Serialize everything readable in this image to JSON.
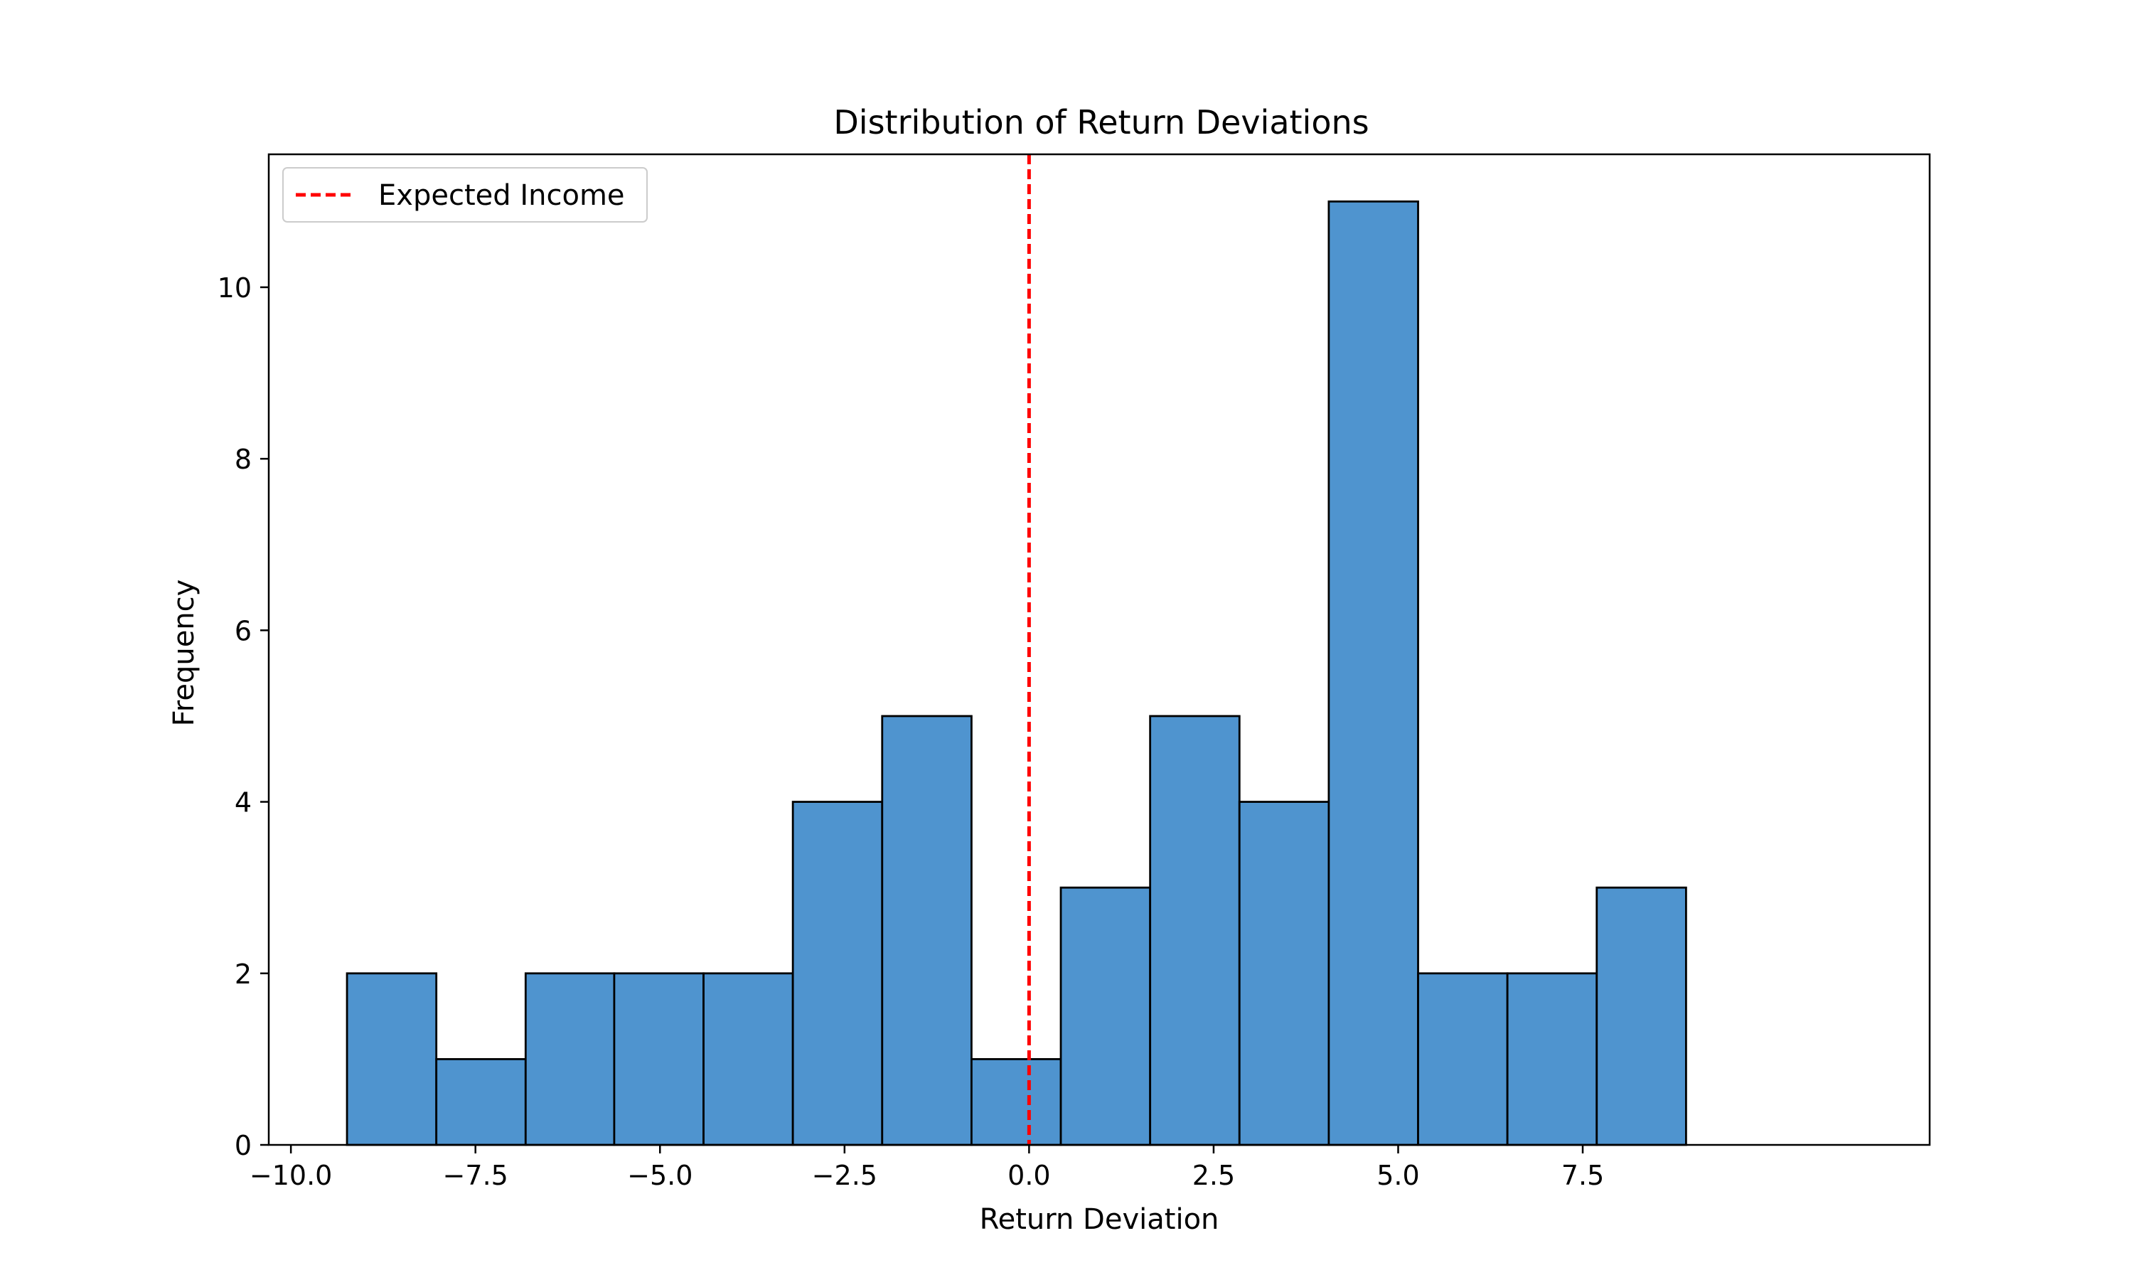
{
  "chart_data": {
    "type": "bar",
    "title": "Distribution of Return Deviations",
    "xlabel": "Return Deviation",
    "ylabel": "Frequency",
    "xlim": [
      -10.3,
      12.2
    ],
    "ylim": [
      0,
      11.55
    ],
    "xticks": [
      -10.0,
      -7.5,
      -5.0,
      -2.5,
      0.0,
      2.5,
      5.0,
      7.5
    ],
    "xtick_labels": [
      "−10.0",
      "−7.5",
      "−5.0",
      "−2.5",
      "0.0",
      "2.5",
      "5.0",
      "7.5"
    ],
    "yticks": [
      0,
      2,
      4,
      6,
      8,
      10
    ],
    "ytick_labels": [
      "0",
      "2",
      "4",
      "6",
      "8",
      "10"
    ],
    "bins": [
      {
        "x0": -9.24,
        "x1": -8.03,
        "count": 2
      },
      {
        "x0": -8.03,
        "x1": -6.82,
        "count": 1
      },
      {
        "x0": -6.82,
        "x1": -5.62,
        "count": 2
      },
      {
        "x0": -5.62,
        "x1": -4.41,
        "count": 2
      },
      {
        "x0": -4.41,
        "x1": -3.2,
        "count": 2
      },
      {
        "x0": -3.2,
        "x1": -1.99,
        "count": 4
      },
      {
        "x0": -1.99,
        "x1": -0.78,
        "count": 5
      },
      {
        "x0": -0.78,
        "x1": 0.43,
        "count": 1
      },
      {
        "x0": 0.43,
        "x1": 1.64,
        "count": 3
      },
      {
        "x0": 1.64,
        "x1": 2.85,
        "count": 5
      },
      {
        "x0": 2.85,
        "x1": 4.06,
        "count": 4
      },
      {
        "x0": 4.06,
        "x1": 5.27,
        "count": 11
      },
      {
        "x0": 5.27,
        "x1": 6.48,
        "count": 2
      },
      {
        "x0": 6.48,
        "x1": 7.69,
        "count": 2
      },
      {
        "x0": 7.69,
        "x1": 8.9,
        "count": 3
      }
    ],
    "reference_line": {
      "x": 0.0,
      "label": "Expected Income",
      "color": "#ff0000",
      "style": "dashed"
    },
    "bar_color": "#4f94cf",
    "edge_color": "#000000",
    "grid": false,
    "legend": {
      "placement": "top-left",
      "entries": [
        "Expected Income"
      ]
    }
  }
}
